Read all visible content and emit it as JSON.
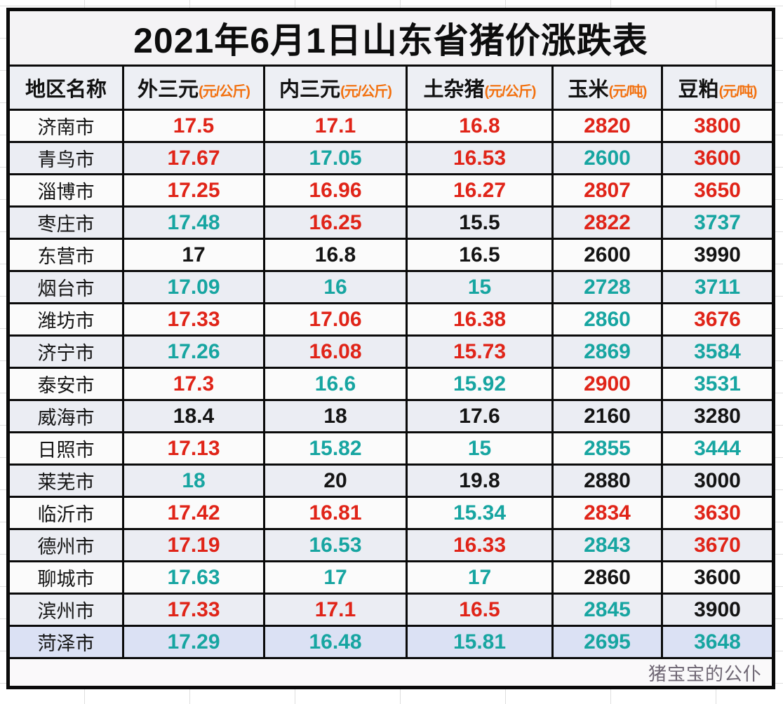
{
  "title": "2021年6月1日山东省猪价涨跌表",
  "columns": [
    {
      "label": "地区名称",
      "unit": ""
    },
    {
      "label": "外三元",
      "unit": "(元/公斤)"
    },
    {
      "label": "内三元",
      "unit": "(元/公斤)"
    },
    {
      "label": "土杂猪",
      "unit": "(元/公斤)"
    },
    {
      "label": "玉米",
      "unit": "(元/吨)"
    },
    {
      "label": "豆粕",
      "unit": "(元/吨)"
    }
  ],
  "colors": {
    "up": "#e02418",
    "down": "#17a5a1",
    "flat": "#141414",
    "unit": "#f2700e",
    "watermark": "#6e6673"
  },
  "rows": [
    {
      "city": "济南市",
      "values": [
        {
          "v": "17.5",
          "t": "up"
        },
        {
          "v": "17.1",
          "t": "up"
        },
        {
          "v": "16.8",
          "t": "up"
        },
        {
          "v": "2820",
          "t": "up"
        },
        {
          "v": "3800",
          "t": "up"
        }
      ]
    },
    {
      "city": "青鸟市",
      "values": [
        {
          "v": "17.67",
          "t": "up"
        },
        {
          "v": "17.05",
          "t": "down"
        },
        {
          "v": "16.53",
          "t": "up"
        },
        {
          "v": "2600",
          "t": "down"
        },
        {
          "v": "3600",
          "t": "up"
        }
      ]
    },
    {
      "city": "淄博市",
      "values": [
        {
          "v": "17.25",
          "t": "up"
        },
        {
          "v": "16.96",
          "t": "up"
        },
        {
          "v": "16.27",
          "t": "up"
        },
        {
          "v": "2807",
          "t": "up"
        },
        {
          "v": "3650",
          "t": "up"
        }
      ]
    },
    {
      "city": "枣庄市",
      "values": [
        {
          "v": "17.48",
          "t": "down"
        },
        {
          "v": "16.25",
          "t": "up"
        },
        {
          "v": "15.5",
          "t": "flat"
        },
        {
          "v": "2822",
          "t": "up"
        },
        {
          "v": "3737",
          "t": "down"
        }
      ]
    },
    {
      "city": "东营市",
      "values": [
        {
          "v": "17",
          "t": "flat"
        },
        {
          "v": "16.8",
          "t": "flat"
        },
        {
          "v": "16.5",
          "t": "flat"
        },
        {
          "v": "2600",
          "t": "flat"
        },
        {
          "v": "3990",
          "t": "flat"
        }
      ]
    },
    {
      "city": "烟台市",
      "values": [
        {
          "v": "17.09",
          "t": "down"
        },
        {
          "v": "16",
          "t": "down"
        },
        {
          "v": "15",
          "t": "down"
        },
        {
          "v": "2728",
          "t": "down"
        },
        {
          "v": "3711",
          "t": "down"
        }
      ]
    },
    {
      "city": "潍坊市",
      "values": [
        {
          "v": "17.33",
          "t": "up"
        },
        {
          "v": "17.06",
          "t": "up"
        },
        {
          "v": "16.38",
          "t": "up"
        },
        {
          "v": "2860",
          "t": "down"
        },
        {
          "v": "3676",
          "t": "up"
        }
      ]
    },
    {
      "city": "济宁市",
      "values": [
        {
          "v": "17.26",
          "t": "down"
        },
        {
          "v": "16.08",
          "t": "up"
        },
        {
          "v": "15.73",
          "t": "up"
        },
        {
          "v": "2869",
          "t": "down"
        },
        {
          "v": "3584",
          "t": "down"
        }
      ]
    },
    {
      "city": "泰安市",
      "values": [
        {
          "v": "17.3",
          "t": "up"
        },
        {
          "v": "16.6",
          "t": "down"
        },
        {
          "v": "15.92",
          "t": "down"
        },
        {
          "v": "2900",
          "t": "up"
        },
        {
          "v": "3531",
          "t": "down"
        }
      ]
    },
    {
      "city": "威海市",
      "values": [
        {
          "v": "18.4",
          "t": "flat"
        },
        {
          "v": "18",
          "t": "flat"
        },
        {
          "v": "17.6",
          "t": "flat"
        },
        {
          "v": "2160",
          "t": "flat"
        },
        {
          "v": "3280",
          "t": "flat"
        }
      ]
    },
    {
      "city": "日照市",
      "values": [
        {
          "v": "17.13",
          "t": "up"
        },
        {
          "v": "15.82",
          "t": "down"
        },
        {
          "v": "15",
          "t": "down"
        },
        {
          "v": "2855",
          "t": "down"
        },
        {
          "v": "3444",
          "t": "down"
        }
      ]
    },
    {
      "city": "莱芜市",
      "values": [
        {
          "v": "18",
          "t": "down"
        },
        {
          "v": "20",
          "t": "flat"
        },
        {
          "v": "19.8",
          "t": "flat"
        },
        {
          "v": "2880",
          "t": "flat"
        },
        {
          "v": "3000",
          "t": "flat"
        }
      ]
    },
    {
      "city": "临沂市",
      "values": [
        {
          "v": "17.42",
          "t": "up"
        },
        {
          "v": "16.81",
          "t": "up"
        },
        {
          "v": "15.34",
          "t": "down"
        },
        {
          "v": "2834",
          "t": "up"
        },
        {
          "v": "3630",
          "t": "up"
        }
      ]
    },
    {
      "city": "德州市",
      "values": [
        {
          "v": "17.19",
          "t": "up"
        },
        {
          "v": "16.53",
          "t": "down"
        },
        {
          "v": "16.33",
          "t": "up"
        },
        {
          "v": "2843",
          "t": "down"
        },
        {
          "v": "3670",
          "t": "up"
        }
      ]
    },
    {
      "city": "聊城市",
      "values": [
        {
          "v": "17.63",
          "t": "down"
        },
        {
          "v": "17",
          "t": "down"
        },
        {
          "v": "17",
          "t": "down"
        },
        {
          "v": "2860",
          "t": "flat"
        },
        {
          "v": "3600",
          "t": "flat"
        }
      ]
    },
    {
      "city": "滨州市",
      "values": [
        {
          "v": "17.33",
          "t": "up"
        },
        {
          "v": "17.1",
          "t": "up"
        },
        {
          "v": "16.5",
          "t": "up"
        },
        {
          "v": "2845",
          "t": "down"
        },
        {
          "v": "3900",
          "t": "flat"
        }
      ]
    },
    {
      "city": "菏泽市",
      "highlight": true,
      "values": [
        {
          "v": "17.29",
          "t": "down"
        },
        {
          "v": "16.48",
          "t": "down"
        },
        {
          "v": "15.81",
          "t": "down"
        },
        {
          "v": "2695",
          "t": "down"
        },
        {
          "v": "3648",
          "t": "down"
        }
      ]
    }
  ],
  "footer": {
    "text": "猪宝宝的公仆"
  }
}
